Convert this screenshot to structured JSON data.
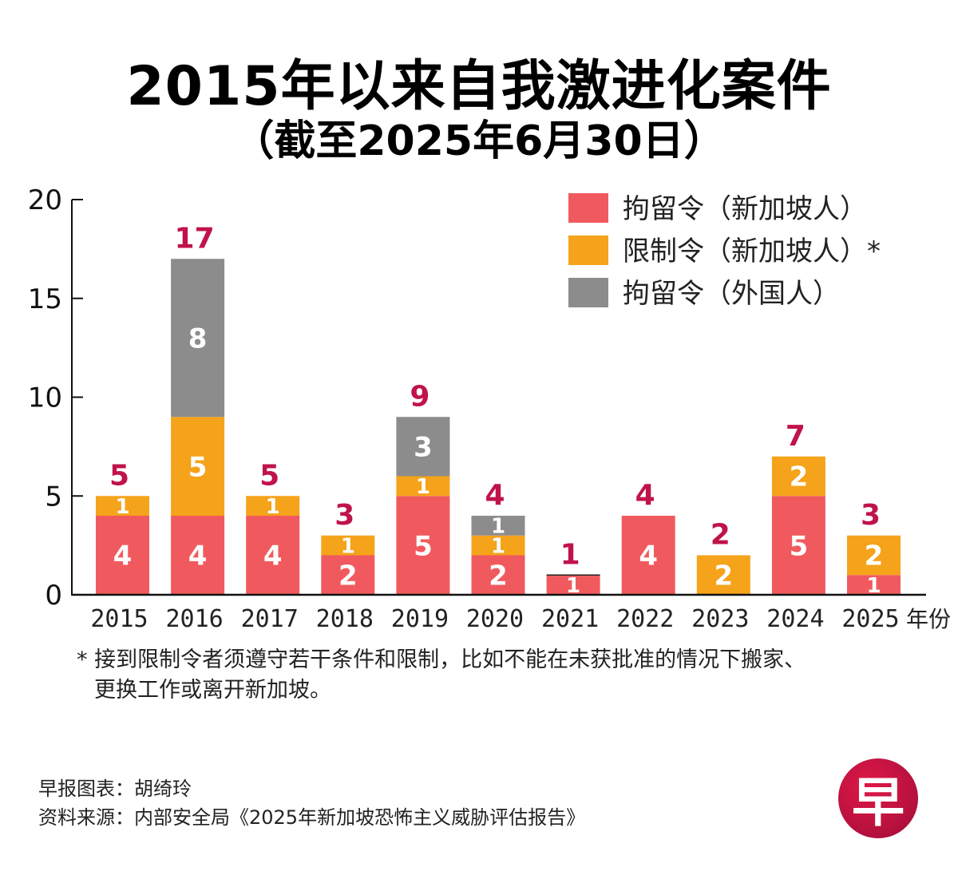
{
  "header": {
    "title": "2015年以来自我激进化案件",
    "subtitle": "（截至2025年6月30日）"
  },
  "chart_data": {
    "type": "bar",
    "stacked": true,
    "title": "2015年以来自我激进化案件",
    "subtitle": "（截至2025年6月30日）",
    "xlabel": "年份",
    "ylabel": "",
    "ylim": [
      0,
      20
    ],
    "yticks": [
      0,
      5,
      10,
      15,
      20
    ],
    "grid": false,
    "legend_position": "top-right",
    "categories": [
      "2015",
      "2016",
      "2017",
      "2018",
      "2019",
      "2020",
      "2021",
      "2022",
      "2023",
      "2024",
      "2025"
    ],
    "series": [
      {
        "name": "拘留令（新加坡人）",
        "color": "#f05a5e",
        "values": [
          4,
          4,
          4,
          2,
          5,
          2,
          1,
          4,
          0,
          5,
          1
        ]
      },
      {
        "name": "限制令（新加坡人）*",
        "color": "#f5a31a",
        "values": [
          1,
          5,
          1,
          1,
          1,
          1,
          0,
          0,
          2,
          2,
          2
        ]
      },
      {
        "name": "拘留令（外国人）",
        "color": "#8c8c8c",
        "values": [
          0,
          8,
          0,
          0,
          3,
          1,
          0,
          0,
          0,
          0,
          0
        ]
      }
    ],
    "totals": [
      5,
      17,
      5,
      3,
      9,
      4,
      1,
      4,
      2,
      7,
      3
    ],
    "total_label_color": "#c0134a"
  },
  "footnote": {
    "line1": "* 接到限制令者须遵守若干条件和限制，比如不能在未获批准的情况下搬家、",
    "line2": "更换工作或离开新加坡。"
  },
  "credits": {
    "chart_by": "早报图表：胡绮玲",
    "source": "资料来源：内部安全局《2025年新加坡恐怖主义威胁评估报告》"
  },
  "logo": {
    "glyph": "早",
    "name": "lianhe-zaobao-logo"
  }
}
